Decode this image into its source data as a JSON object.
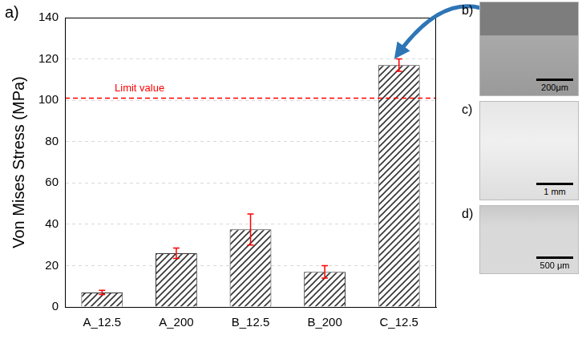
{
  "chart_data": {
    "type": "bar",
    "categories": [
      "A_12.5",
      "A_200",
      "B_12.5",
      "B_200",
      "C_12.5"
    ],
    "values": [
      7,
      26,
      37.5,
      17,
      117
    ],
    "errors": [
      1,
      2.5,
      7.5,
      3,
      3
    ],
    "color": "#333333",
    "y_label": "Von Mises Stress (MPa)",
    "ylim": [
      0,
      140
    ],
    "yticks": [
      0,
      20,
      40,
      60,
      80,
      100,
      120,
      140
    ],
    "grid": true,
    "panel_label": "a)",
    "annotations": [
      {
        "text": "Limit value",
        "y": 101,
        "color": "#ff0000",
        "line_style": "dashed"
      }
    ]
  },
  "images": [
    {
      "label": "b)",
      "scale_bar": "200μm"
    },
    {
      "label": "c)",
      "scale_bar": "1 mm"
    },
    {
      "label": "d)",
      "scale_bar": "500 μm"
    }
  ]
}
